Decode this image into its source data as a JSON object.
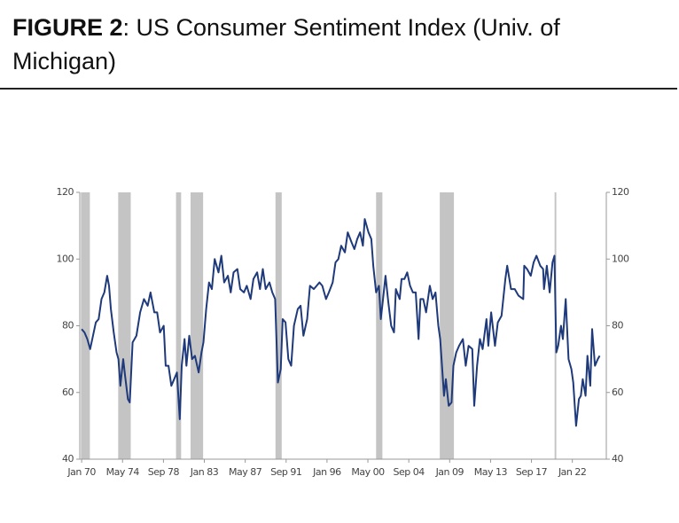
{
  "chart_data": {
    "type": "line",
    "figure_label": "FIGURE 2",
    "title": ": US Consumer Sentiment Index (Univ. of Michigan)",
    "xlim": [
      1969.8,
      2025.6
    ],
    "xticks": [
      {
        "value": 1970,
        "label": "Jan 70"
      },
      {
        "value": 1974.333,
        "label": "May 74"
      },
      {
        "value": 1978.667,
        "label": "Sep 78"
      },
      {
        "value": 1983,
        "label": "Jan 83"
      },
      {
        "value": 1987.333,
        "label": "May 87"
      },
      {
        "value": 1991.667,
        "label": "Sep 91"
      },
      {
        "value": 1996,
        "label": "Jan 96"
      },
      {
        "value": 2000.333,
        "label": "May 00"
      },
      {
        "value": 2004.667,
        "label": "Sep 04"
      },
      {
        "value": 2009,
        "label": "Jan 09"
      },
      {
        "value": 2013.333,
        "label": "May 13"
      },
      {
        "value": 2017.667,
        "label": "Sep 17"
      },
      {
        "value": 2022,
        "label": "Jan 22"
      }
    ],
    "ylim": [
      40,
      120
    ],
    "yticks": [
      40,
      60,
      80,
      100,
      120
    ],
    "y2lim": [
      40,
      120
    ],
    "y2ticks": [
      40,
      60,
      80,
      100,
      120
    ],
    "grid": false,
    "shaded_periods": [
      [
        1969.92,
        1970.87
      ],
      [
        1973.87,
        1975.2
      ],
      [
        1980.0,
        1980.54
      ],
      [
        1981.54,
        1982.87
      ],
      [
        1990.54,
        1991.2
      ],
      [
        2001.2,
        2001.87
      ],
      [
        2007.95,
        2009.45
      ],
      [
        2020.12,
        2020.3
      ]
    ],
    "shade_color": "#c4c4c4",
    "x": [
      1970.0,
      1970.3,
      1970.6,
      1970.9,
      1971.2,
      1971.5,
      1971.8,
      1972.1,
      1972.4,
      1972.7,
      1972.9,
      1973.1,
      1973.4,
      1973.7,
      1973.9,
      1974.1,
      1974.4,
      1974.6,
      1974.9,
      1975.1,
      1975.4,
      1975.8,
      1976.2,
      1976.6,
      1977.0,
      1977.3,
      1977.7,
      1978.0,
      1978.3,
      1978.7,
      1978.9,
      1979.2,
      1979.5,
      1979.8,
      1980.1,
      1980.4,
      1980.6,
      1980.9,
      1981.1,
      1981.4,
      1981.7,
      1982.0,
      1982.4,
      1982.7,
      1982.9,
      1983.2,
      1983.5,
      1983.8,
      1984.1,
      1984.5,
      1984.8,
      1985.1,
      1985.5,
      1985.8,
      1986.1,
      1986.5,
      1986.8,
      1987.2,
      1987.5,
      1987.9,
      1988.2,
      1988.6,
      1988.9,
      1989.2,
      1989.5,
      1989.9,
      1990.2,
      1990.5,
      1990.8,
      1991.1,
      1991.3,
      1991.6,
      1991.9,
      1992.2,
      1992.5,
      1992.9,
      1993.2,
      1993.5,
      1993.9,
      1994.2,
      1994.6,
      1994.9,
      1995.2,
      1995.5,
      1995.9,
      1996.2,
      1996.6,
      1996.9,
      1997.2,
      1997.5,
      1997.9,
      1998.2,
      1998.6,
      1998.9,
      1999.2,
      1999.5,
      1999.8,
      2000.0,
      2000.4,
      2000.7,
      2000.9,
      2001.2,
      2001.5,
      2001.7,
      2001.9,
      2002.2,
      2002.5,
      2002.8,
      2003.1,
      2003.3,
      2003.7,
      2003.9,
      2004.2,
      2004.5,
      2004.8,
      2005.1,
      2005.4,
      2005.7,
      2005.9,
      2006.2,
      2006.5,
      2006.9,
      2007.2,
      2007.5,
      2007.8,
      2008.0,
      2008.4,
      2008.6,
      2008.9,
      2009.2,
      2009.4,
      2009.7,
      2010.0,
      2010.4,
      2010.7,
      2011.0,
      2011.4,
      2011.6,
      2011.9,
      2012.2,
      2012.5,
      2012.9,
      2013.1,
      2013.4,
      2013.8,
      2014.1,
      2014.5,
      2014.9,
      2015.1,
      2015.5,
      2015.9,
      2016.3,
      2016.8,
      2016.9,
      2017.2,
      2017.6,
      2017.9,
      2018.2,
      2018.6,
      2018.9,
      2019.0,
      2019.3,
      2019.6,
      2019.9,
      2020.1,
      2020.3,
      2020.5,
      2020.8,
      2021.0,
      2021.3,
      2021.6,
      2021.9,
      2022.1,
      2022.4,
      2022.7,
      2022.9,
      2023.1,
      2023.4,
      2023.6,
      2023.9,
      2024.1,
      2024.4,
      2024.7,
      2024.9
    ],
    "series": [
      {
        "name": "US Consumer Sentiment Index",
        "color": "#1f3a7a",
        "values": [
          79,
          78,
          76,
          73,
          77,
          81,
          82,
          88,
          90,
          95,
          92,
          85,
          78,
          72,
          70,
          62,
          70,
          65,
          58,
          57,
          75,
          77,
          84,
          88,
          86,
          90,
          84,
          84,
          78,
          80,
          68,
          68,
          62,
          64,
          66,
          52,
          68,
          76,
          68,
          77,
          70,
          71,
          66,
          72,
          75,
          85,
          93,
          91,
          100,
          96,
          101,
          93,
          95,
          90,
          96,
          97,
          91,
          90,
          92,
          88,
          94,
          96,
          91,
          97,
          91,
          93,
          90,
          88,
          63,
          67,
          82,
          81,
          70,
          68,
          80,
          85,
          86,
          77,
          82,
          92,
          91,
          92,
          93,
          92,
          88,
          90,
          93,
          99,
          100,
          104,
          102,
          108,
          105,
          103,
          106,
          108,
          104,
          112,
          108,
          106,
          98,
          90,
          92,
          82,
          87,
          95,
          87,
          80,
          78,
          91,
          88,
          94,
          94,
          96,
          92,
          90,
          90,
          76,
          88,
          88,
          84,
          92,
          88,
          90,
          80,
          76,
          59,
          64,
          56,
          57,
          68,
          72,
          74,
          76,
          68,
          74,
          73,
          56,
          68,
          76,
          73,
          82,
          74,
          84,
          74,
          81,
          83,
          94,
          98,
          91,
          91,
          89,
          88,
          98,
          97,
          95,
          99,
          101,
          98,
          97,
          91,
          98,
          90,
          99,
          101,
          72,
          74,
          80,
          76,
          88,
          70,
          67,
          63,
          50,
          58,
          59,
          64,
          59,
          71,
          62,
          79,
          68,
          70,
          71
        ]
      }
    ]
  }
}
